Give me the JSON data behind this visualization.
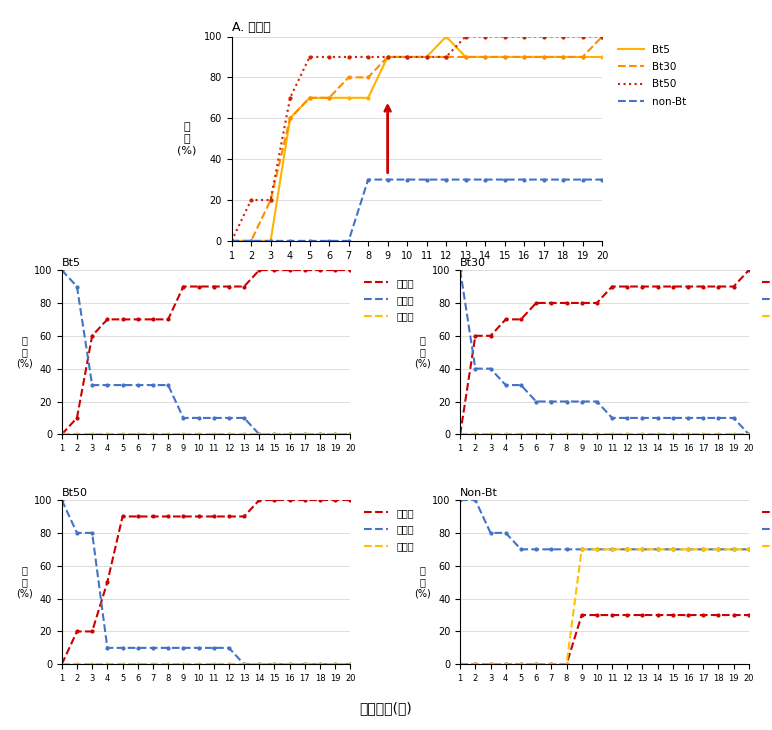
{
  "title_top": "A. 사망률",
  "xlabel": "노출시간(일)",
  "ylabel_parts": [
    "비",
    "율",
    "(%)"
  ],
  "top_Bt5": [
    0,
    0,
    0,
    60,
    70,
    70,
    70,
    70,
    90,
    90,
    90,
    100,
    90,
    90,
    90,
    90,
    90,
    90,
    90,
    90
  ],
  "top_Bt30": [
    0,
    0,
    20,
    60,
    70,
    70,
    80,
    80,
    90,
    90,
    90,
    90,
    90,
    90,
    90,
    90,
    90,
    90,
    90,
    100
  ],
  "top_Bt50": [
    0,
    20,
    20,
    70,
    90,
    90,
    90,
    90,
    90,
    90,
    90,
    90,
    100,
    100,
    100,
    100,
    100,
    100,
    100,
    100
  ],
  "top_nonBt": [
    0,
    0,
    0,
    0,
    0,
    0,
    0,
    30,
    30,
    30,
    30,
    30,
    30,
    30,
    30,
    30,
    30,
    30,
    30,
    30
  ],
  "bt5_death": [
    0,
    10,
    60,
    70,
    70,
    70,
    70,
    70,
    90,
    90,
    90,
    90,
    90,
    100,
    100,
    100,
    100,
    100,
    100,
    100
  ],
  "bt5_survive": [
    100,
    90,
    30,
    30,
    30,
    30,
    30,
    30,
    10,
    10,
    10,
    10,
    10,
    0,
    0,
    0,
    0,
    0,
    0,
    0
  ],
  "bt5_pupa": [
    0,
    0,
    0,
    0,
    0,
    0,
    0,
    0,
    0,
    0,
    0,
    0,
    0,
    0,
    0,
    0,
    0,
    0,
    0,
    0
  ],
  "bt30_death": [
    0,
    60,
    60,
    70,
    70,
    80,
    80,
    80,
    80,
    80,
    90,
    90,
    90,
    90,
    90,
    90,
    90,
    90,
    90,
    100
  ],
  "bt30_survive": [
    100,
    40,
    40,
    30,
    30,
    20,
    20,
    20,
    20,
    20,
    10,
    10,
    10,
    10,
    10,
    10,
    10,
    10,
    10,
    0
  ],
  "bt30_pupa": [
    0,
    0,
    0,
    0,
    0,
    0,
    0,
    0,
    0,
    0,
    0,
    0,
    0,
    0,
    0,
    0,
    0,
    0,
    0,
    0
  ],
  "bt50_death": [
    0,
    20,
    20,
    50,
    90,
    90,
    90,
    90,
    90,
    90,
    90,
    90,
    90,
    100,
    100,
    100,
    100,
    100,
    100,
    100
  ],
  "bt50_survive": [
    100,
    80,
    80,
    10,
    10,
    10,
    10,
    10,
    10,
    10,
    10,
    10,
    0,
    0,
    0,
    0,
    0,
    0,
    0,
    0
  ],
  "bt50_pupa": [
    0,
    0,
    0,
    0,
    0,
    0,
    0,
    0,
    0,
    0,
    0,
    0,
    0,
    0,
    0,
    0,
    0,
    0,
    0,
    0
  ],
  "nonbt_death": [
    0,
    0,
    0,
    0,
    0,
    0,
    0,
    0,
    30,
    30,
    30,
    30,
    30,
    30,
    30,
    30,
    30,
    30,
    30,
    30
  ],
  "nonbt_survive": [
    100,
    100,
    80,
    80,
    70,
    70,
    70,
    70,
    70,
    70,
    70,
    70,
    70,
    70,
    70,
    70,
    70,
    70,
    70,
    70
  ],
  "nonbt_pupa": [
    0,
    0,
    0,
    0,
    0,
    0,
    0,
    0,
    70,
    70,
    70,
    70,
    70,
    70,
    70,
    70,
    70,
    70,
    70,
    70
  ],
  "c_bt5": "#ffb300",
  "c_bt30": "#ff8c00",
  "c_bt50": "#cc2200",
  "c_nonbt": "#4472c4",
  "c_death": "#cc0000",
  "c_surv": "#4472c4",
  "c_pupa": "#ffc000",
  "c_arrow": "#cc0000",
  "c_grid": "#d0d0d0"
}
